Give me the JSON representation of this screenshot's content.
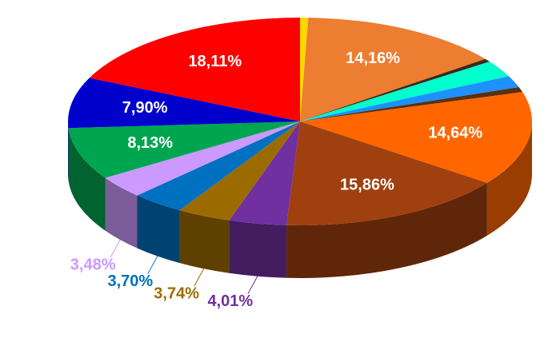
{
  "chart_data": {
    "type": "pie3d",
    "values": [
      0.57,
      14.16,
      0.5,
      2.6,
      1.8,
      0.8,
      14.64,
      15.86,
      4.01,
      3.74,
      3.7,
      3.48,
      8.13,
      7.9,
      18.11
    ],
    "value_labels": [
      null,
      "14,16%",
      null,
      null,
      null,
      null,
      "14,64%",
      "15,86%",
      "4,01%",
      "3,74%",
      "3,70%",
      "3,48%",
      "8,13%",
      "7,90%",
      "18,11%"
    ],
    "colors": [
      "#ffd700",
      "#ed7d31",
      "#3a2a1a",
      "#00ffcc",
      "#1e90ff",
      "#5a3010",
      "#ff6600",
      "#a0400f",
      "#7030a0",
      "#9c6b00",
      "#0070c0",
      "#cc99ff",
      "#00a550",
      "#0000cc",
      "#ff0000"
    ]
  }
}
